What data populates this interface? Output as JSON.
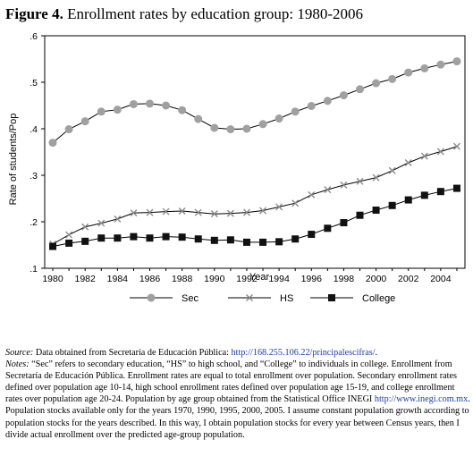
{
  "figure": {
    "label": "Figure 4.",
    "title": "Enrollment rates by education group: 1980-2006"
  },
  "chart_data": {
    "type": "line",
    "xlabel": "Year",
    "ylabel": "Rate of students/Pop",
    "xlim": [
      1979.5,
      2005.5
    ],
    "ylim": [
      0.1,
      0.6
    ],
    "xticks": [
      "1980",
      "1982",
      "1984",
      "1986",
      "1988",
      "1990",
      "1992",
      "1994",
      "1996",
      "1998",
      "2000",
      "2002",
      "2004"
    ],
    "yticks": [
      ".1",
      ".2",
      ".3",
      ".4",
      ".5",
      ".6"
    ],
    "grid": false,
    "legend": "bottom",
    "x": [
      1980,
      1981,
      1982,
      1983,
      1984,
      1985,
      1986,
      1987,
      1988,
      1989,
      1990,
      1991,
      1992,
      1993,
      1994,
      1995,
      1996,
      1997,
      1998,
      1999,
      2000,
      2001,
      2002,
      2003,
      2004,
      2005
    ],
    "series": [
      {
        "name": "Sec",
        "marker": "circle",
        "color": "#a0a0a0",
        "values": [
          0.37,
          0.399,
          0.416,
          0.437,
          0.441,
          0.453,
          0.454,
          0.45,
          0.44,
          0.421,
          0.402,
          0.399,
          0.4,
          0.41,
          0.422,
          0.437,
          0.449,
          0.46,
          0.472,
          0.485,
          0.498,
          0.507,
          0.521,
          0.53,
          0.538,
          0.545
        ]
      },
      {
        "name": "HS",
        "marker": "x",
        "color": "#8a8a8a",
        "values": [
          0.152,
          0.172,
          0.189,
          0.197,
          0.206,
          0.219,
          0.22,
          0.222,
          0.223,
          0.22,
          0.217,
          0.218,
          0.22,
          0.224,
          0.232,
          0.24,
          0.258,
          0.269,
          0.279,
          0.287,
          0.295,
          0.31,
          0.327,
          0.341,
          0.351,
          0.362
        ]
      },
      {
        "name": "College",
        "marker": "square",
        "color": "#111111",
        "values": [
          0.147,
          0.154,
          0.158,
          0.165,
          0.165,
          0.168,
          0.165,
          0.168,
          0.167,
          0.163,
          0.16,
          0.161,
          0.156,
          0.156,
          0.157,
          0.163,
          0.173,
          0.186,
          0.198,
          0.214,
          0.225,
          0.235,
          0.247,
          0.257,
          0.265,
          0.272
        ]
      }
    ]
  },
  "notes": {
    "source_label": "Source:",
    "source_text": " Data obtained from Secretaría de Educación Pública: ",
    "source_link": "http://168.255.106.22/principalescifras/",
    "source_end": ".",
    "notes_label": "Notes:",
    "notes_text_1": " “Sec” refers to secondary education, “",
    "notes_hs": "HS",
    "notes_text_2": "” to high school, and “College” to individuals in college. Enrollment from Secretaría de Educación Pública. Enrollment rates are equal to total enrollment over population. Secondary enrollment rates defined over population age 10-14, high school enrollment rates defined over population age 15-19, and college enrollment rates over population age 20-24. Population by age group obtained from the Statistical Office ",
    "notes_inegi": "INEGI",
    "notes_text_3": " ",
    "notes_link": "http://www.inegi.com.mx",
    "notes_text_4": ". Population stocks available only for the years 1970, 1990, 1995, 2000, 2005. I assume constant population growth according to population stocks for the years described. In this way, I obtain population stocks for every year between Census years, then I divide actual enrollment over the predicted age-group population."
  }
}
